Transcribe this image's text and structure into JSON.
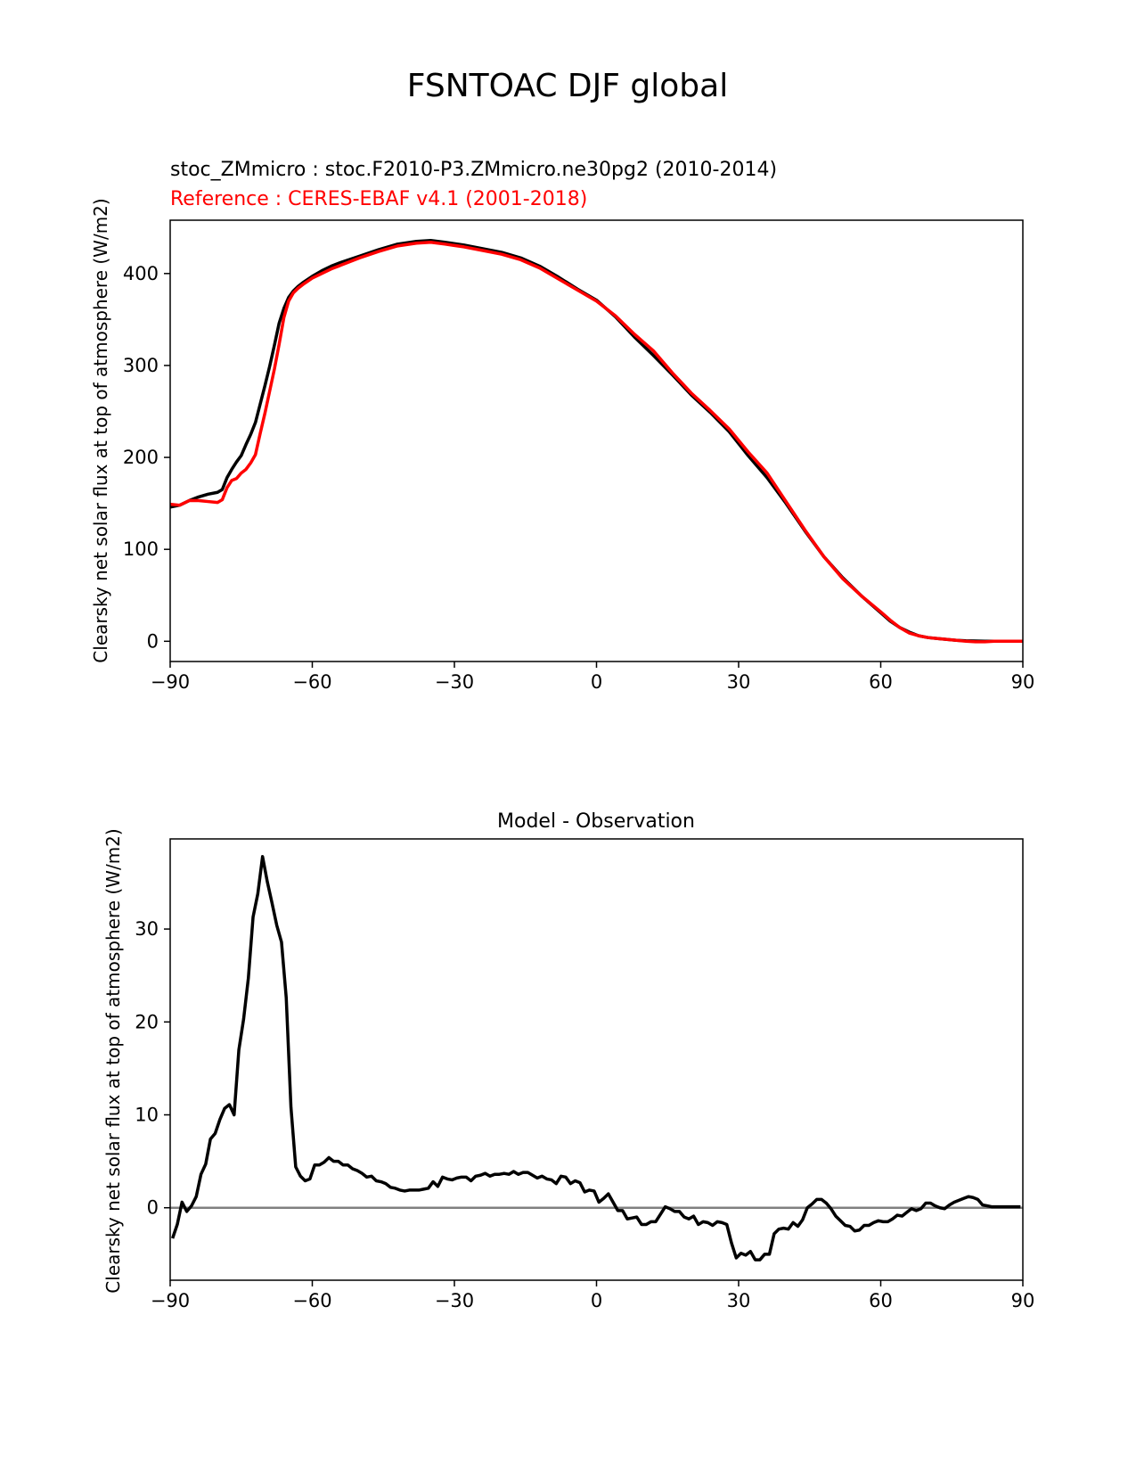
{
  "figure": {
    "title": "FSNTOAC DJF global"
  },
  "chart_data": [
    {
      "type": "line",
      "subtitle_test": "stoc_ZMmicro : stoc.F2010-P3.ZMmicro.ne30pg2 (2010-2014)",
      "subtitle_ref": "Reference : CERES-EBAF v4.1 (2001-2018)",
      "ylabel": "Clearsky net solar flux at top of atmosphere (W/m2)",
      "xlim": [
        -90,
        90
      ],
      "ylim": [
        -22,
        458
      ],
      "xticks": [
        -90,
        -60,
        -30,
        0,
        30,
        60,
        90
      ],
      "xtick_labels": [
        "−90",
        "−60",
        "−30",
        "0",
        "30",
        "60",
        "90"
      ],
      "yticks": [
        0,
        100,
        200,
        300,
        400
      ],
      "ytick_labels": [
        "0",
        "100",
        "200",
        "300",
        "400"
      ],
      "grid": false,
      "series": [
        {
          "name": "stoc_ZMmicro : stoc.F2010-P3.ZMmicro.ne30pg2 (2010-2014)",
          "color": "#000000",
          "x": [
            -90,
            -88,
            -86,
            -84,
            -82,
            -80,
            -79,
            -78,
            -77,
            -76,
            -75,
            -74,
            -73,
            -72,
            -71,
            -70,
            -69,
            -68,
            -67,
            -66,
            -65,
            -64,
            -63,
            -62,
            -60,
            -58,
            -56,
            -54,
            -50,
            -46,
            -42,
            -38,
            -35,
            -32,
            -28,
            -24,
            -20,
            -16,
            -12,
            -8,
            -4,
            0,
            4,
            8,
            12,
            16,
            20,
            24,
            28,
            32,
            36,
            40,
            44,
            48,
            52,
            56,
            60,
            62,
            64,
            66,
            68,
            70,
            72,
            74,
            76,
            78,
            80,
            82,
            84,
            86,
            88,
            90
          ],
          "y": [
            146,
            148,
            153,
            157,
            160,
            162,
            165,
            178,
            187,
            195,
            202,
            214,
            225,
            238,
            258,
            278,
            299,
            322,
            346,
            362,
            374,
            381,
            386,
            390,
            397,
            403,
            408,
            412,
            419,
            426,
            432,
            435,
            436,
            434,
            431,
            427,
            423,
            417,
            408,
            396,
            383,
            371,
            353,
            331,
            311,
            290,
            268,
            249,
            228,
            202,
            178,
            150,
            120,
            92,
            69,
            49,
            31,
            22,
            15,
            10,
            6,
            4,
            3,
            2,
            1,
            0.5,
            0.3,
            0.1,
            0.1,
            0,
            0,
            0
          ]
        },
        {
          "name": "Reference : CERES-EBAF v4.1 (2001-2018)",
          "color": "#ff0000",
          "x": [
            -90,
            -88,
            -86,
            -84,
            -82,
            -80,
            -79,
            -78,
            -77,
            -76,
            -75,
            -74,
            -73,
            -72,
            -71,
            -70,
            -69,
            -68,
            -67,
            -66,
            -65,
            -64,
            -63,
            -62,
            -60,
            -58,
            -56,
            -54,
            -50,
            -46,
            -42,
            -38,
            -35,
            -32,
            -28,
            -24,
            -20,
            -16,
            -12,
            -8,
            -4,
            0,
            4,
            8,
            12,
            16,
            20,
            24,
            28,
            32,
            36,
            40,
            44,
            48,
            52,
            56,
            60,
            62,
            64,
            66,
            68,
            70,
            72,
            74,
            76,
            78,
            80,
            82,
            84,
            86,
            88,
            90
          ],
          "y": [
            149,
            148,
            153,
            153,
            152,
            151,
            154,
            167,
            175,
            177,
            183,
            187,
            194,
            203,
            226,
            248,
            272,
            296,
            323,
            352,
            370,
            379,
            384,
            388,
            395,
            400,
            405,
            409,
            417,
            424,
            430,
            433,
            434,
            432,
            429,
            425,
            421,
            415,
            406,
            394,
            382,
            370,
            354,
            334,
            316,
            292,
            270,
            251,
            231,
            206,
            183,
            152,
            121,
            92,
            68,
            49,
            32,
            23,
            15,
            9,
            6,
            4,
            3,
            2,
            1,
            0,
            -0.5,
            -0.5,
            0,
            0,
            0,
            0
          ]
        }
      ]
    },
    {
      "type": "line",
      "title": "Model - Observation",
      "ylabel": "Clearsky net solar flux at top of atmosphere (W/m2)",
      "xlim": [
        -90,
        90
      ],
      "ylim": [
        -7.8,
        39.7
      ],
      "xticks": [
        -90,
        -60,
        -30,
        0,
        30,
        60,
        90
      ],
      "xtick_labels": [
        "−90",
        "−60",
        "−30",
        "0",
        "30",
        "60",
        "90"
      ],
      "yticks": [
        0,
        10,
        20,
        30
      ],
      "ytick_labels": [
        "0",
        "10",
        "20",
        "30"
      ],
      "grid": false,
      "zero_line": {
        "y": 0,
        "color": "#808080"
      },
      "series": [
        {
          "name": "",
          "color": "#000000",
          "x": [
            -89.5,
            -88.5,
            -87.5,
            -86.5,
            -85.5,
            -84.5,
            -83.5,
            -82.5,
            -81.5,
            -80.5,
            -79.5,
            -78.5,
            -77.5,
            -76.5,
            -75.5,
            -74.5,
            -73.5,
            -72.5,
            -71.5,
            -70.5,
            -69.5,
            -68.5,
            -67.5,
            -66.5,
            -65.5,
            -64.5,
            -63.5,
            -62.5,
            -61.5,
            -60.5,
            -59.5,
            -58.5,
            -57.5,
            -56.5,
            -55.5,
            -54.5,
            -53.5,
            -52.5,
            -51.5,
            -50.5,
            -49.5,
            -48.5,
            -47.5,
            -46.5,
            -45.5,
            -44.5,
            -43.5,
            -42.5,
            -41.5,
            -40.5,
            -39.5,
            -38.5,
            -37.5,
            -36.5,
            -35.5,
            -34.5,
            -33.5,
            -32.5,
            -31.5,
            -30.5,
            -29.5,
            -28.5,
            -27.5,
            -26.5,
            -25.5,
            -24.5,
            -23.5,
            -22.5,
            -21.5,
            -20.5,
            -19.5,
            -18.5,
            -17.5,
            -16.5,
            -15.5,
            -14.5,
            -13.5,
            -12.5,
            -11.5,
            -10.5,
            -9.5,
            -8.5,
            -7.5,
            -6.5,
            -5.5,
            -4.5,
            -3.5,
            -2.5,
            -1.5,
            -0.5,
            0.5,
            1.5,
            2.5,
            3.5,
            4.5,
            5.5,
            6.5,
            7.5,
            8.5,
            9.5,
            10.5,
            11.5,
            12.5,
            13.5,
            14.5,
            15.5,
            16.5,
            17.5,
            18.5,
            19.5,
            20.5,
            21.5,
            22.5,
            23.5,
            24.5,
            25.5,
            26.5,
            27.5,
            28.5,
            29.5,
            30.5,
            31.5,
            32.5,
            33.5,
            34.5,
            35.5,
            36.5,
            37.5,
            38.5,
            39.5,
            40.5,
            41.5,
            42.5,
            43.5,
            44.5,
            45.5,
            46.5,
            47.5,
            48.5,
            49.5,
            50.5,
            51.5,
            52.5,
            53.5,
            54.5,
            55.5,
            56.5,
            57.5,
            58.5,
            59.5,
            60.5,
            61.5,
            62.5,
            63.5,
            64.5,
            65.5,
            66.5,
            67.5,
            68.5,
            69.5,
            70.5,
            71.5,
            72.5,
            73.5,
            74.5,
            75.5,
            76.5,
            77.5,
            78.5,
            79.5,
            80.5,
            81.5,
            82.5,
            83.5,
            84.5,
            85.5,
            86.5,
            87.5,
            88.5,
            89.5
          ],
          "y": [
            -3.3,
            -1.8,
            0.6,
            -0.4,
            0.2,
            1.2,
            3.6,
            4.7,
            7.4,
            8.0,
            9.5,
            10.7,
            11.1,
            10.0,
            17.0,
            20.3,
            24.7,
            31.3,
            33.8,
            37.8,
            35.1,
            32.8,
            30.4,
            28.6,
            22.6,
            10.8,
            4.4,
            3.4,
            2.9,
            3.1,
            4.6,
            4.6,
            4.9,
            5.4,
            5.0,
            5.0,
            4.6,
            4.6,
            4.2,
            4.0,
            3.7,
            3.3,
            3.4,
            2.9,
            2.8,
            2.6,
            2.2,
            2.1,
            1.9,
            1.8,
            1.9,
            1.9,
            1.9,
            2.0,
            2.1,
            2.8,
            2.3,
            3.3,
            3.1,
            3.0,
            3.2,
            3.3,
            3.3,
            2.9,
            3.4,
            3.5,
            3.7,
            3.4,
            3.6,
            3.6,
            3.7,
            3.6,
            3.9,
            3.6,
            3.8,
            3.8,
            3.5,
            3.2,
            3.4,
            3.1,
            3.0,
            2.6,
            3.4,
            3.3,
            2.6,
            2.9,
            2.7,
            1.7,
            1.9,
            1.8,
            0.6,
            1.0,
            1.5,
            0.6,
            -0.3,
            -0.3,
            -1.2,
            -1.1,
            -1.0,
            -1.8,
            -1.8,
            -1.5,
            -1.5,
            -0.7,
            0.1,
            -0.1,
            -0.4,
            -0.4,
            -1.0,
            -1.2,
            -0.9,
            -1.8,
            -1.5,
            -1.6,
            -1.9,
            -1.5,
            -1.6,
            -1.8,
            -3.8,
            -5.4,
            -4.9,
            -5.1,
            -4.7,
            -5.6,
            -5.6,
            -5.0,
            -5.0,
            -2.8,
            -2.3,
            -2.2,
            -2.3,
            -1.6,
            -2.0,
            -1.3,
            0.0,
            0.4,
            0.9,
            0.9,
            0.5,
            -0.1,
            -0.9,
            -1.4,
            -1.9,
            -2.0,
            -2.5,
            -2.4,
            -1.9,
            -1.9,
            -1.6,
            -1.4,
            -1.5,
            -1.5,
            -1.2,
            -0.8,
            -0.9,
            -0.5,
            -0.1,
            -0.3,
            -0.1,
            0.5,
            0.5,
            0.2,
            0.0,
            -0.1,
            0.3,
            0.6,
            0.8,
            1.0,
            1.2,
            1.1,
            0.9,
            0.3,
            0.2,
            0.1,
            0.1,
            0.1,
            0.1,
            0.1,
            0.1,
            0.1
          ]
        }
      ]
    }
  ]
}
